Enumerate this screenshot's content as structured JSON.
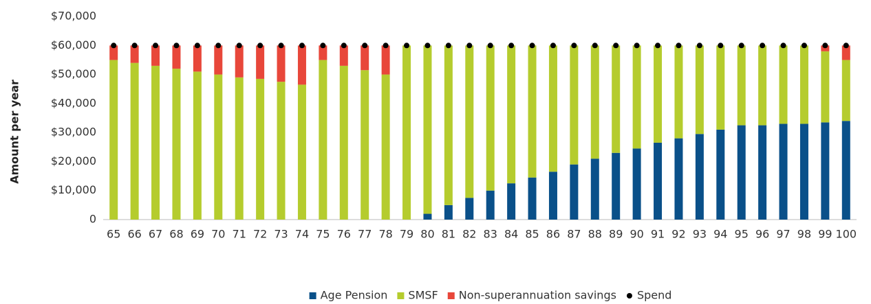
{
  "chart_data": {
    "type": "stacked-bar",
    "y_axis_label": "Amount per year",
    "categories": [
      "65",
      "66",
      "67",
      "68",
      "69",
      "70",
      "71",
      "72",
      "73",
      "74",
      "75",
      "76",
      "77",
      "78",
      "79",
      "80",
      "81",
      "82",
      "83",
      "84",
      "85",
      "86",
      "87",
      "88",
      "89",
      "90",
      "91",
      "92",
      "93",
      "94",
      "95",
      "96",
      "97",
      "98",
      "99",
      "100"
    ],
    "series": [
      {
        "name": "Age Pension",
        "color": "#0a5089",
        "values": [
          0,
          0,
          0,
          0,
          0,
          0,
          0,
          0,
          0,
          0,
          0,
          0,
          0,
          0,
          0,
          2000,
          5000,
          7500,
          10000,
          12500,
          14500,
          16500,
          19000,
          21000,
          23000,
          24500,
          26500,
          28000,
          29500,
          31000,
          32500,
          32500,
          33000,
          33000,
          33500,
          34000
        ]
      },
      {
        "name": "SMSF",
        "color": "#b5cc2e",
        "values": [
          55000,
          54000,
          53000,
          52000,
          51000,
          50000,
          49000,
          48500,
          47500,
          46500,
          55000,
          53000,
          51500,
          50000,
          60000,
          58000,
          55000,
          52500,
          50000,
          47500,
          45500,
          43500,
          41000,
          39000,
          37000,
          35500,
          33500,
          32000,
          30500,
          29000,
          27500,
          27500,
          27000,
          27000,
          24500,
          21000
        ]
      },
      {
        "name": "Non-superannuation savings",
        "color": "#e8473a",
        "values": [
          5000,
          6000,
          7000,
          8000,
          9000,
          10000,
          11000,
          11500,
          12500,
          13500,
          5000,
          7000,
          8500,
          10000,
          0,
          0,
          0,
          0,
          0,
          0,
          0,
          0,
          0,
          0,
          0,
          0,
          0,
          0,
          0,
          0,
          0,
          0,
          0,
          0,
          2000,
          5000
        ]
      }
    ],
    "spend": {
      "name": "Spend",
      "color": "#000000",
      "values": [
        60000,
        60000,
        60000,
        60000,
        60000,
        60000,
        60000,
        60000,
        60000,
        60000,
        60000,
        60000,
        60000,
        60000,
        60000,
        60000,
        60000,
        60000,
        60000,
        60000,
        60000,
        60000,
        60000,
        60000,
        60000,
        60000,
        60000,
        60000,
        60000,
        60000,
        60000,
        60000,
        60000,
        60000,
        60000,
        60000
      ]
    },
    "ylim": [
      0,
      70000
    ],
    "yticks": [
      0,
      {
        "value": 10000,
        "label": "$10,000"
      },
      {
        "value": 20000,
        "label": "$20,000"
      },
      {
        "value": 30000,
        "label": "$30,000"
      },
      {
        "value": 40000,
        "label": "$40,000"
      },
      {
        "value": 50000,
        "label": "$50,000"
      },
      {
        "value": 60000,
        "label": "$60,000"
      },
      {
        "value": 70000,
        "label": "$70,000"
      }
    ],
    "grid": false,
    "legend_position": "bottom"
  }
}
